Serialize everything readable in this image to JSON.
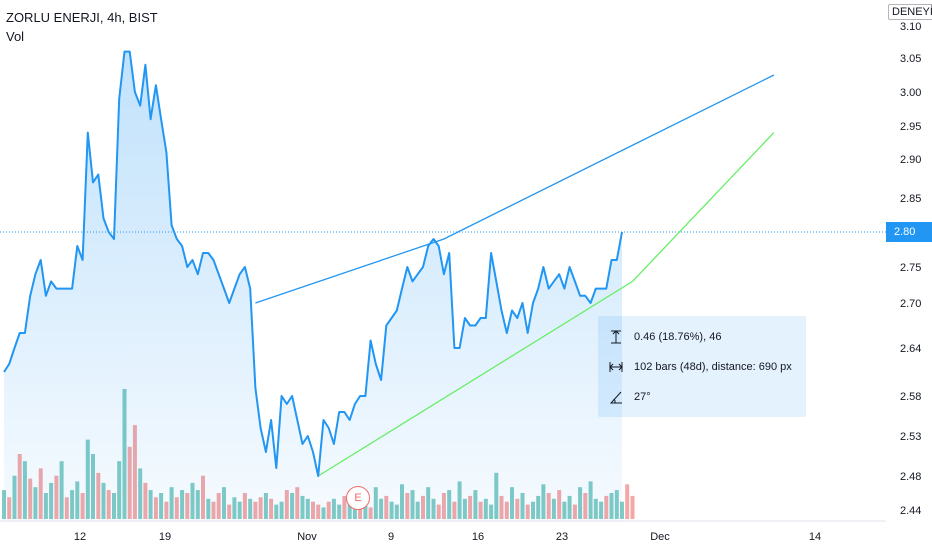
{
  "legend": {
    "symbol": "ZORLU ENERJI, 4h, BIST",
    "volume_label": "Vol"
  },
  "colors": {
    "price_line": "#2196f3",
    "area_fill": "#2196f3",
    "upper_trendline": "#2196f3",
    "lower_trendline": "#66ee66",
    "volume_up": "#80cbc4",
    "volume_down": "#f4a7a7",
    "axis_text": "#131722",
    "price_tag_bg": "#2196f3"
  },
  "top_axis_tag": "DENEYİN",
  "current_price_tag": "2.80",
  "measure": {
    "price_range": "0.46 (18.76%), 46",
    "bars_range": "102 bars (48d), distance: 690 px",
    "angle": "27°",
    "icons": [
      "price-range-icon",
      "date-range-icon",
      "angle-icon"
    ]
  },
  "earnings_badge": "E",
  "chart_data": {
    "type": "line",
    "title": "ZORLU ENERJI, 4h, BIST",
    "x_tick_labels": [
      "12",
      "19",
      "Nov",
      "9",
      "16",
      "23",
      "Dec",
      "14"
    ],
    "y_tick_labels": [
      "3.10",
      "3.05",
      "3.00",
      "2.95",
      "2.90",
      "2.85",
      "2.80",
      "2.75",
      "2.70",
      "2.64",
      "2.58",
      "2.53",
      "2.48",
      "2.44"
    ],
    "ylim": [
      2.44,
      3.1
    ],
    "grid": false,
    "series": [
      {
        "name": "ZORLU ENERJI",
        "values": [
          2.61,
          2.62,
          2.64,
          2.66,
          2.66,
          2.71,
          2.74,
          2.76,
          2.71,
          2.73,
          2.72,
          2.72,
          2.72,
          2.72,
          2.78,
          2.76,
          2.94,
          2.87,
          2.88,
          2.82,
          2.8,
          2.79,
          2.99,
          3.06,
          3.06,
          3.0,
          2.98,
          3.04,
          2.96,
          3.01,
          2.96,
          2.91,
          2.81,
          2.79,
          2.78,
          2.75,
          2.76,
          2.74,
          2.77,
          2.77,
          2.76,
          2.74,
          2.72,
          2.7,
          2.72,
          2.74,
          2.75,
          2.72,
          2.59,
          2.54,
          2.51,
          2.55,
          2.49,
          2.58,
          2.57,
          2.58,
          2.55,
          2.52,
          2.53,
          2.51,
          2.48,
          2.55,
          2.54,
          2.52,
          2.56,
          2.56,
          2.55,
          2.57,
          2.58,
          2.58,
          2.65,
          2.62,
          2.6,
          2.67,
          2.68,
          2.69,
          2.72,
          2.75,
          2.73,
          2.74,
          2.75,
          2.78,
          2.79,
          2.78,
          2.74,
          2.77,
          2.64,
          2.64,
          2.68,
          2.67,
          2.67,
          2.68,
          2.68,
          2.77,
          2.73,
          2.69,
          2.66,
          2.69,
          2.68,
          2.7,
          2.66,
          2.7,
          2.72,
          2.75,
          2.72,
          2.73,
          2.74,
          2.72,
          2.75,
          2.73,
          2.71,
          2.71,
          2.7,
          2.72,
          2.72,
          2.72,
          2.76,
          2.76,
          2.8
        ]
      }
    ],
    "volume": {
      "name": "Vol",
      "values": [
        20,
        15,
        30,
        45,
        40,
        28,
        22,
        35,
        18,
        25,
        30,
        40,
        15,
        20,
        26,
        18,
        55,
        45,
        32,
        25,
        20,
        18,
        40,
        90,
        50,
        65,
        35,
        25,
        20,
        15,
        18,
        12,
        22,
        15,
        20,
        18,
        25,
        20,
        30,
        14,
        12,
        18,
        22,
        10,
        15,
        12,
        18,
        14,
        12,
        15,
        18,
        14,
        10,
        12,
        20,
        18,
        22,
        16,
        14,
        12,
        10,
        8,
        12,
        14,
        10,
        16,
        14,
        18,
        12,
        10,
        8,
        22,
        14,
        16,
        12,
        10,
        24,
        18,
        20,
        12,
        16,
        22,
        14,
        10,
        18,
        20,
        12,
        26,
        14,
        16,
        20,
        12,
        14,
        10,
        32,
        16,
        12,
        22,
        14,
        18,
        10,
        12,
        16,
        24,
        18,
        14,
        20,
        12,
        16,
        10,
        22,
        18,
        26,
        14,
        12,
        16,
        18,
        20,
        12,
        24,
        16
      ],
      "up": [
        true,
        false,
        true,
        false,
        true,
        false,
        true,
        false,
        true,
        true,
        false,
        true,
        false,
        true,
        true,
        false,
        true,
        true,
        false,
        true,
        false,
        true,
        true,
        true,
        false,
        false,
        true,
        false,
        true,
        false,
        true,
        false,
        true,
        false,
        true,
        false,
        true,
        true,
        false,
        true,
        false,
        false,
        true,
        false,
        true,
        true,
        false,
        true,
        false,
        false,
        true,
        false,
        true,
        true,
        false,
        true,
        false,
        true,
        true,
        false,
        false,
        true,
        false,
        true,
        true,
        false,
        true,
        true,
        false,
        true,
        false,
        true,
        true,
        false,
        true,
        true,
        true,
        false,
        true,
        true,
        false,
        true,
        true,
        false,
        false,
        true,
        false,
        true,
        true,
        false,
        true,
        false,
        true,
        true,
        true,
        false,
        false,
        true,
        false,
        true,
        false,
        true,
        true,
        true,
        false,
        true,
        false,
        true,
        true,
        false,
        true,
        false,
        true,
        true,
        true,
        false,
        true,
        true,
        true
      ]
    },
    "trendlines": [
      {
        "name": "upper",
        "points": [
          [
            48,
            2.7
          ],
          [
            84,
            2.79
          ],
          [
            147,
            3.025
          ]
        ]
      },
      {
        "name": "lower",
        "points": [
          [
            60,
            2.48
          ],
          [
            120,
            2.73
          ],
          [
            147,
            2.94
          ]
        ]
      }
    ]
  }
}
